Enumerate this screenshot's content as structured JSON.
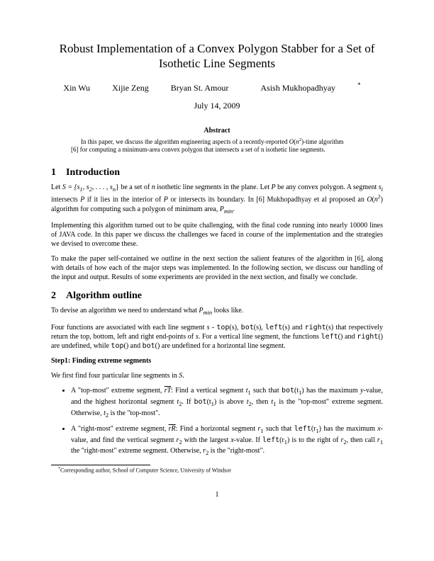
{
  "title_l1": "Robust Implementation of a Convex Polygon Stabber for a Set of",
  "title_l2": "Isothetic Line Segments",
  "authors": {
    "a1": "Xin Wu",
    "a2": "Xijie Zeng",
    "a3": "Bryan St. Amour",
    "a4": "Asish Mukhopadhyay"
  },
  "star": "*",
  "date": "July 14, 2009",
  "abstract_head": "Abstract",
  "abstract_l1a": "In this paper, we discuss the algorithm engineering aspects of a recently-reported ",
  "abstract_l1b": "O",
  "abstract_l1c": "(",
  "abstract_l1d": "n",
  "abstract_l1e": "2",
  "abstract_l1f": ")-time algorithm",
  "abstract_l2": "[6] for computing a minimum-area convex polygon that intersects a set of n isothetic line segments.",
  "sec1_num": "1",
  "sec1_title": "Introduction",
  "p1a": "Let ",
  "p1b": "S = {s",
  "p1b2": "1",
  "p1c": ", s",
  "p1c2": "2",
  "p1d": ", . . . , s",
  "p1d2": "n",
  "p1e": "} be a set of ",
  "p1e2": "n",
  "p1f": " isothetic line segments in the plane. Let ",
  "p1g": "P",
  "p1h": " be any convex polygon. A segment ",
  "p1i": "s",
  "p1i2": "i",
  "p1j": " intersects ",
  "p1k": "P",
  "p1l": " if it lies in the interior of ",
  "p1m": "P",
  "p1n": " or intersects its boundary. In [6] Mukhopadhyay et al proposed an ",
  "p1o": "O",
  "p1p": "(",
  "p1q": "n",
  "p1r": "2",
  "p1s": ") algorithm for computing such a polygon of minimum area, ",
  "p1t": "P",
  "p1t2": "min",
  "p1u": ".",
  "p2": "Implementing this algorithm turned out to be quite challenging, with the final code running into nearly 10000 lines of JAVA code. In this paper we discuss the challenges we faced in course of the implementation and the strategies we devised to overcome these.",
  "p3": "To make the paper self-contained we outline in the next section the salient features of the algorithm in [6], along with details of how each of the major steps was implemented. In the following section, we discuss our handling of the input and output. Results of some experiments are provided in the next section, and finally we conclude.",
  "sec2_num": "2",
  "sec2_title": "Algorithm outline",
  "p4a": "To devise an algorithm we need to understand what ",
  "p4b": "P",
  "p4c": "min",
  "p4d": " looks like.",
  "p5a": "Four functions are associated with each line segment ",
  "p5b": "s",
  "p5c": " - ",
  "p5d": "top",
  "p5e": "(s), ",
  "p5f": "bot",
  "p5g": "(s), ",
  "p5h": "left",
  "p5i": "(s) and ",
  "p5j": "right",
  "p5k": "(s) that respectively return the top, bottom, left and right end-points of ",
  "p5l": "s",
  "p5m": ". For a vertical line segment, the functions ",
  "p5n": "left",
  "p5o": "() and ",
  "p5p": "right",
  "p5q": "() are undefined, while ",
  "p5r": "top",
  "p5s": "() and ",
  "p5t": "bot",
  "p5u": "() are undefined for a horizontal line segment.",
  "step1_label": "Step1: Finding extreme segments",
  "p6a": "We first find four particular line segments in ",
  "p6b": "S",
  "p6c": ".",
  "li1a": "A \"top-most\" extreme segment, ",
  "li1T": "rT",
  "li1b": ": Find a vertical segment ",
  "li1c": "t",
  "li1c2": "1",
  "li1d": " such that ",
  "li1e": "bot",
  "li1f": "(t",
  "li1f2": "1",
  "li1g": ") has the maximum ",
  "li1h": "y",
  "li1i": "-value, and the highest horizontal segment ",
  "li1j": "t",
  "li1j2": "2",
  "li1k": ". If ",
  "li1l": "bot",
  "li1m": "(t",
  "li1m2": "1",
  "li1n": ") is above ",
  "li1o": "t",
  "li1o2": "2",
  "li1p": ", then ",
  "li1q": "t",
  "li1q2": "1",
  "li1r": " is the \"top-most\" extreme segment. Otherwise, ",
  "li1s": "t",
  "li1s2": "2",
  "li1t": " is the \"top-most\".",
  "li2a": "A \"right-most\" extreme segment, ",
  "li2R": "rR",
  "li2b": ": Find a horizontal segment ",
  "li2c": "r",
  "li2c2": "1",
  "li2d": " such that ",
  "li2e": "left",
  "li2f": "(r",
  "li2f2": "1",
  "li2g": ") has the maximum ",
  "li2h": "x",
  "li2i": "-value, and find the vertical segment ",
  "li2j": "r",
  "li2j2": "2",
  "li2k": " with the largest ",
  "li2l": "x",
  "li2m": "-value. If ",
  "li2n": "left",
  "li2o": "(r",
  "li2o2": "1",
  "li2p": ") is to the right of ",
  "li2q": "r",
  "li2q2": "2",
  "li2r": ", then call ",
  "li2s": "r",
  "li2s2": "1",
  "li2t": " the \"right-most\" extreme segment. Otherwise, ",
  "li2u": "r",
  "li2u2": "2",
  "li2v": " is the \"right-most\".",
  "footnote_star": "*",
  "footnote_text": "Corresponding author, School of Computer Science, University of Windsor",
  "pagenum": "1"
}
